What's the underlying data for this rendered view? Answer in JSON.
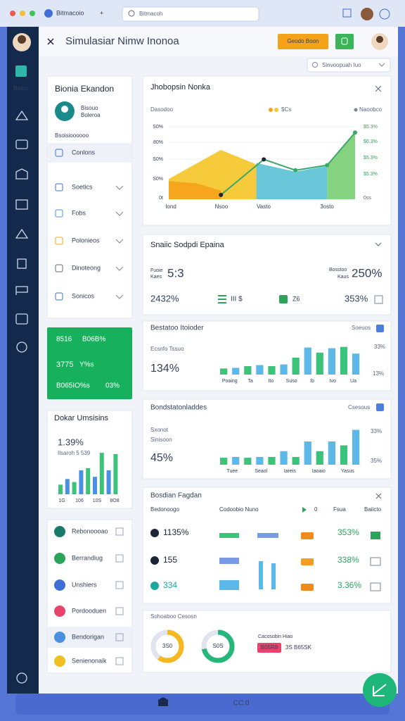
{
  "browser": {
    "tab": "Bitmacoio",
    "address": "Bitmacoh"
  },
  "header": {
    "title": "Simulasiar Nimw Inonoa",
    "button": "Geodo Boon"
  },
  "sidebar": {
    "label": "Bistos"
  },
  "search": "Sinvoopuah Iuo",
  "profile_panel": {
    "title": "Bionia Ekandon",
    "name": "Bisouo",
    "role": "Boleroa",
    "section": "Bsoisioooooo",
    "items": [
      "Conlons",
      "Soetics",
      "Fobs",
      "Polonieos",
      "Dinoteong",
      "Sonicos"
    ]
  },
  "promo": {
    "rows": [
      [
        "8516",
        "B06B%"
      ],
      [
        "3775",
        "Y%s"
      ],
      [
        "B065IO%s",
        "03%"
      ]
    ]
  },
  "mini_chart": {
    "title": "Dokar Umsisins",
    "value": "1.39%",
    "caption": "Ilsaroh 5 539",
    "values": [
      22,
      35,
      28,
      55,
      60,
      40,
      95,
      55,
      92
    ],
    "colors": [
      "#3cc37a",
      "#4a90e2"
    ],
    "labels": [
      "1G",
      "106",
      "10S",
      "8O8"
    ]
  },
  "tasks": {
    "items": [
      "Rebonoooao",
      "Berrandiug",
      "Unshiers",
      "Pordooduen",
      "Bendorigan",
      "Senienonaik"
    ]
  },
  "area_card": {
    "title": "Jhobopsin Nonka",
    "legend": [
      "Dasodoo",
      "$Cs",
      "Naoobco"
    ],
    "left_labels": [
      "S0%",
      "80%",
      "S0%",
      "S0%",
      "0t"
    ],
    "right_labels": [
      "$5.3%",
      "$0.3%",
      "$5.3%",
      "$5.3%",
      "0ss"
    ],
    "x_labels": [
      "Iond",
      "Nsoo",
      "Vasto",
      "3osto"
    ],
    "areas": [
      {
        "color": "#f5c830",
        "x": [
          0,
          28,
          47
        ],
        "values": [
          28,
          68,
          48
        ]
      },
      {
        "color": "#f5a31a",
        "x": [
          0,
          15,
          28
        ],
        "values": [
          25,
          22,
          12
        ]
      },
      {
        "color": "#62c4d8",
        "x": [
          47,
          68,
          85
        ],
        "values": [
          50,
          38,
          46
        ]
      },
      {
        "color": "#7ed07a",
        "x": [
          85,
          100
        ],
        "values": [
          46,
          92
        ]
      }
    ],
    "line": {
      "color": "#3aa86a",
      "x": [
        28,
        51,
        68,
        85,
        100
      ],
      "values": [
        6,
        55,
        40,
        47,
        92
      ]
    }
  },
  "summary_card": {
    "title": "Snaiic Sodpdi Epaina",
    "left_caption": [
      "Fuoie",
      "Kaes"
    ],
    "left_value": "5:3",
    "right_caption": [
      "Bosstoo",
      "Kaus"
    ],
    "right_value": "250%",
    "stats": [
      "2432%",
      "III $",
      "Z6",
      "353%"
    ]
  },
  "bar_card_1": {
    "title": "Bestatoo Itoioder",
    "toggle": "Soeuos",
    "caption": "Ecsnfo Tssuo",
    "value": "134%",
    "right_labels": [
      "33%",
      "13%"
    ],
    "x_labels": [
      "Poaing",
      "Ta",
      "Ito",
      "Suso",
      "Ib",
      "Ivo",
      "Ua"
    ],
    "values": [
      18,
      20,
      25,
      28,
      25,
      30,
      50,
      80,
      65,
      78,
      82,
      62
    ],
    "colors": [
      "#3cc37a",
      "#5bb8e8"
    ]
  },
  "bar_card_2": {
    "title": "Bondstatonladdes",
    "toggle": "Csesous",
    "captions": [
      "Sxonot",
      "Sinisoon"
    ],
    "value": "45%",
    "right_labels": [
      "33%",
      "35%"
    ],
    "x_labels": [
      "Tuee",
      "Seaol",
      "Iareis",
      "Iaoaio",
      "Yasus"
    ],
    "values": [
      18,
      20,
      18,
      20,
      20,
      35,
      20,
      60,
      35,
      60,
      50,
      90
    ],
    "colors": [
      "#3cc37a",
      "#5bb8e8"
    ]
  },
  "table_card": {
    "title": "Bosdian Fagdan",
    "headers": [
      "Bedonoogo",
      "Codoobio Nuno",
      "0",
      "Fsua",
      "Baiicto"
    ],
    "rows": [
      [
        "1135%",
        "353%"
      ],
      [
        "155",
        "338%"
      ],
      [
        "334",
        "3.36%"
      ]
    ]
  },
  "donut_card": {
    "title": "Sohoaboo Cesosn",
    "legend": "Cacosobin Hiao",
    "badge": "B05R8",
    "note": "3S B65SK",
    "donuts": [
      {
        "label": "3S0",
        "value": 60,
        "color": "#f5b820"
      },
      {
        "label": "S0S",
        "value": 72,
        "color": "#25b67a"
      }
    ]
  },
  "footer": {
    "label": "CC.0"
  }
}
